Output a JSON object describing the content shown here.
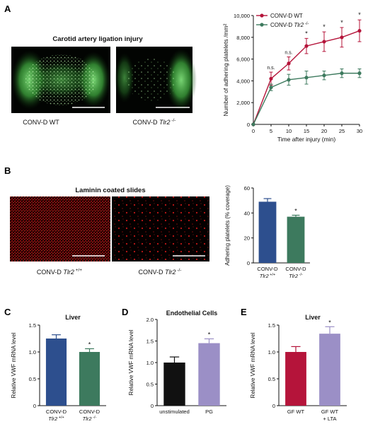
{
  "panels": {
    "A": {
      "letter": "A",
      "image_title": "Carotid artery ligation injury",
      "left_caption": "CONV-D WT",
      "right_caption_base": "CONV-D ",
      "right_caption_italic": "Tlr2",
      "right_caption_sup": " -/-"
    },
    "B": {
      "letter": "B",
      "image_title": "Laminin coated slides",
      "left_caption_base": "CONV-D ",
      "left_caption_italic": "Tlr2",
      "left_caption_sup": " +/+",
      "right_caption_base": "CONV-D ",
      "right_caption_italic": "Tlr2",
      "right_caption_sup": " -/-"
    },
    "C": {
      "letter": "C"
    },
    "D": {
      "letter": "D"
    },
    "E": {
      "letter": "E"
    }
  },
  "chart_data": [
    {
      "id": "A",
      "type": "line",
      "title": "",
      "xlabel": "Time after injury (min)",
      "ylabel": "Number of adhering platelets /mm²",
      "x": [
        0,
        5,
        10,
        15,
        20,
        25,
        30
      ],
      "xlim": [
        0,
        30
      ],
      "ylim": [
        0,
        10000
      ],
      "xticks": [
        "0",
        "5",
        "10",
        "15",
        "20",
        "25",
        "30"
      ],
      "yticks": [
        "0",
        "2,000",
        "4,000",
        "6,000",
        "8,000",
        "10,000"
      ],
      "legend_position": "top-left",
      "legend": [
        "CONV-D WT",
        "CONV-D Tlr2 -/-"
      ],
      "series": [
        {
          "name": "CONV-D WT",
          "color": "#b5143a",
          "values": [
            0,
            4200,
            5600,
            7200,
            7600,
            8000,
            8600
          ],
          "errors": [
            0,
            600,
            600,
            700,
            900,
            900,
            1000
          ]
        },
        {
          "name": "CONV-D Tlr2 -/-",
          "color": "#3d7a5e",
          "values": [
            0,
            3400,
            4100,
            4300,
            4500,
            4700,
            4700
          ],
          "errors": [
            0,
            300,
            500,
            600,
            400,
            400,
            400
          ]
        }
      ],
      "annotations": [
        "",
        "n.s.",
        "n.s.",
        "*",
        "*",
        "*",
        "*"
      ]
    },
    {
      "id": "B",
      "type": "bar",
      "title": "",
      "xlabel": "",
      "ylabel": "Adhering platelets (% coverage)",
      "ylim": [
        0,
        60
      ],
      "yticks": [
        "0",
        "20",
        "40",
        "60"
      ],
      "categories": [
        "CONV-D Tlr2 +/+",
        "CONV-D Tlr2 -/-"
      ],
      "category_lines": [
        [
          "CONV-D",
          "Tlr2",
          " +/+"
        ],
        [
          "CONV-D",
          "Tlr2",
          " -/-"
        ]
      ],
      "values": [
        49,
        37
      ],
      "errors": [
        2.5,
        1.2
      ],
      "colors": [
        "#2d4f8e",
        "#3d7a5e"
      ],
      "annotations": [
        "",
        "*"
      ]
    },
    {
      "id": "C",
      "type": "bar",
      "title": "Liver",
      "xlabel": "",
      "ylabel": "Relative VWF mRNA level",
      "ylim": [
        0,
        1.5
      ],
      "yticks": [
        "0",
        "0.5",
        "1.0",
        "1.5"
      ],
      "categories": [
        "CONV-D Tlr2 +/+",
        "CONV-D Tlr2 -/-"
      ],
      "category_lines": [
        [
          "CONV-D",
          "Tlr2",
          " +/+"
        ],
        [
          "CONV-D",
          "Tlr2",
          " -/-"
        ]
      ],
      "values": [
        1.25,
        1.0
      ],
      "errors": [
        0.07,
        0.06
      ],
      "colors": [
        "#2d4f8e",
        "#3d7a5e"
      ],
      "annotations": [
        "",
        "*"
      ]
    },
    {
      "id": "D",
      "type": "bar",
      "title": "Endothelial Cells",
      "xlabel": "",
      "ylabel": "Relative VWF mRNA level",
      "ylim": [
        0,
        2.0
      ],
      "yticks": [
        "0",
        "0.5",
        "1.0",
        "1.5",
        "2.0"
      ],
      "categories": [
        "unstimulated",
        "PG"
      ],
      "category_lines": [
        [
          "unstimulated"
        ],
        [
          "PG"
        ]
      ],
      "values": [
        1.0,
        1.45
      ],
      "errors": [
        0.13,
        0.1
      ],
      "colors": [
        "#111111",
        "#9b8fc6"
      ],
      "annotations": [
        "",
        "*"
      ]
    },
    {
      "id": "E",
      "type": "bar",
      "title": "Liver",
      "xlabel": "",
      "ylabel": "Relative VWF mRNA level",
      "ylim": [
        0,
        1.5
      ],
      "yticks": [
        "0",
        "0.5",
        "1.0",
        "1.5"
      ],
      "categories": [
        "GF WT",
        "GF WT + LTA"
      ],
      "category_lines": [
        [
          "GF WT"
        ],
        [
          "GF WT",
          "+ LTA"
        ]
      ],
      "values": [
        1.0,
        1.34
      ],
      "errors": [
        0.1,
        0.13
      ],
      "colors": [
        "#b5143a",
        "#9b8fc6"
      ],
      "annotations": [
        "",
        "*"
      ]
    }
  ]
}
